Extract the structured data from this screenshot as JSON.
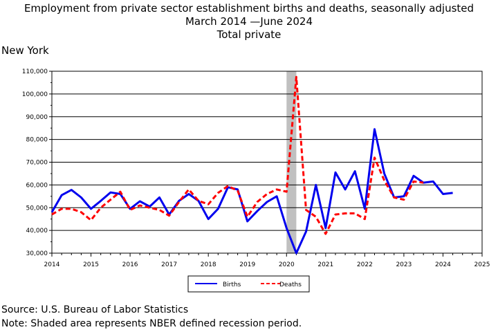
{
  "chart_data": {
    "type": "line",
    "title": "Employment from private sector establishment births and deaths, seasonally adjusted",
    "subtitle_lines": [
      "March 2014 —June 2024",
      "Total private"
    ],
    "region_label": "New York",
    "xlim": [
      2014,
      2025
    ],
    "ylim": [
      30000,
      110000
    ],
    "x_ticks": [
      "2014",
      "2015",
      "2016",
      "2017",
      "2018",
      "2019",
      "2020",
      "2021",
      "2022",
      "2023",
      "2024",
      "2025"
    ],
    "y_ticks": [
      "30,000",
      "40,000",
      "50,000",
      "60,000",
      "70,000",
      "80,000",
      "90,000",
      "100,000",
      "110,000"
    ],
    "grid": true,
    "legend_position": "bottom",
    "recession_shading": [
      2020.0,
      2020.25
    ],
    "x": [
      2014.0,
      2014.25,
      2014.5,
      2014.75,
      2015.0,
      2015.25,
      2015.5,
      2015.75,
      2016.0,
      2016.25,
      2016.5,
      2016.75,
      2017.0,
      2017.25,
      2017.5,
      2017.75,
      2018.0,
      2018.25,
      2018.5,
      2018.75,
      2019.0,
      2019.25,
      2019.5,
      2019.75,
      2020.0,
      2020.25,
      2020.5,
      2020.75,
      2021.0,
      2021.25,
      2021.5,
      2021.75,
      2022.0,
      2022.25,
      2022.5,
      2022.75,
      2023.0,
      2023.25,
      2023.5,
      2023.75,
      2024.0,
      2024.25
    ],
    "series": [
      {
        "name": "Births",
        "color": "#0000ee",
        "style": "solid",
        "values": [
          48000,
          55500,
          57800,
          54500,
          49500,
          53000,
          56700,
          56000,
          49500,
          52800,
          50500,
          54500,
          47000,
          53000,
          56000,
          53000,
          45000,
          49500,
          59000,
          58000,
          44000,
          48500,
          52500,
          55000,
          41000,
          30000,
          39500,
          60000,
          41000,
          65500,
          58000,
          66000,
          49500,
          84500,
          65000,
          54500,
          55000,
          64000,
          61000,
          61500,
          56000,
          56500
        ]
      },
      {
        "name": "Deaths",
        "color": "#ff0000",
        "style": "dashed",
        "values": [
          47000,
          49500,
          49500,
          48000,
          44500,
          50000,
          53500,
          57000,
          49000,
          51000,
          50000,
          49000,
          46500,
          52500,
          58000,
          53000,
          51500,
          56500,
          59500,
          57500,
          46000,
          52500,
          56000,
          58000,
          57000,
          107500,
          49000,
          46000,
          38500,
          47000,
          47500,
          47500,
          45000,
          72000,
          62000,
          54500,
          53500,
          61500,
          61000,
          null,
          null,
          null
        ]
      }
    ]
  },
  "footer": {
    "source": "Source: U.S. Bureau of Labor Statistics",
    "note": "Note: Shaded area represents NBER defined recession period."
  }
}
